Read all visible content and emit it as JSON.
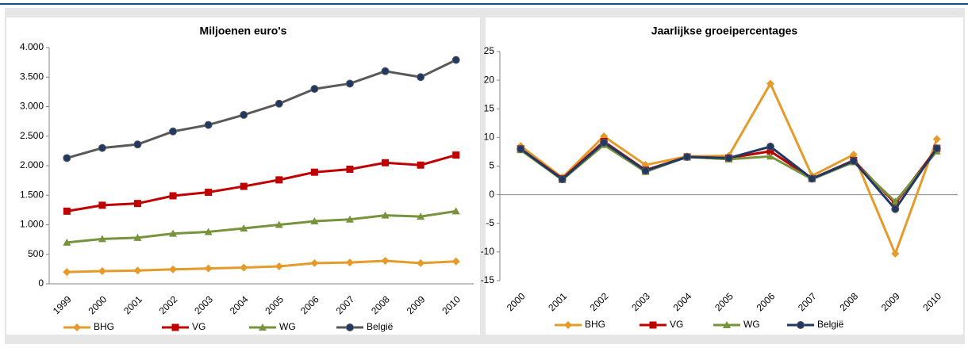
{
  "chart_data": [
    {
      "type": "line",
      "title": "Miljoenen euro's",
      "categories": [
        "1999",
        "2000",
        "2001",
        "2002",
        "2003",
        "2004",
        "2005",
        "2006",
        "2007",
        "2008",
        "2009",
        "2010"
      ],
      "ylim": [
        0,
        4000
      ],
      "yticks": [
        0,
        500,
        {
          "value": 1000,
          "label": "1.000"
        },
        {
          "value": 1500,
          "label": "1.500"
        },
        {
          "value": 2000,
          "label": "2.000"
        },
        {
          "value": 2500,
          "label": "2.500"
        },
        {
          "value": 3000,
          "label": "3.000"
        },
        {
          "value": 3500,
          "label": "3.500"
        },
        {
          "value": 4000,
          "label": "4.000"
        }
      ],
      "legend": "bottom",
      "series": [
        {
          "name": "BHG",
          "color": "#e59b2a",
          "marker": "diamond",
          "marker_color": "#e59b2a",
          "values": [
            200,
            215,
            225,
            245,
            260,
            275,
            295,
            350,
            360,
            390,
            350,
            380
          ]
        },
        {
          "name": "VG",
          "color": "#c00000",
          "marker": "square",
          "marker_color": "#c00000",
          "values": [
            1230,
            1330,
            1360,
            1490,
            1550,
            1650,
            1760,
            1890,
            1940,
            2050,
            2010,
            2180
          ]
        },
        {
          "name": "WG",
          "color": "#77933c",
          "marker": "triangle",
          "marker_color": "#77933c",
          "values": [
            700,
            760,
            780,
            850,
            880,
            940,
            1000,
            1060,
            1090,
            1160,
            1140,
            1230
          ]
        },
        {
          "name": "België",
          "color": "#595959",
          "marker": "circle",
          "marker_color": "#1f3864",
          "values": [
            2130,
            2300,
            2360,
            2580,
            2690,
            2860,
            3050,
            3300,
            3390,
            3600,
            3500,
            3790
          ]
        }
      ]
    },
    {
      "type": "line",
      "title": "Jaarlijkse groeipercentages",
      "categories": [
        "2000",
        "2001",
        "2002",
        "2003",
        "2004",
        "2005",
        "2006",
        "2007",
        "2008",
        "2009",
        "2010"
      ],
      "ylim": [
        -15,
        25
      ],
      "yticks": [
        -15,
        -10,
        -5,
        0,
        5,
        10,
        15,
        20,
        25
      ],
      "legend": "bottom",
      "series": [
        {
          "name": "BHG",
          "color": "#e59b2a",
          "marker": "diamond",
          "marker_color": "#e59b2a",
          "values": [
            8.5,
            3,
            10.2,
            5.2,
            6.7,
            6.8,
            19.4,
            3.3,
            7,
            -10.3,
            9.7
          ]
        },
        {
          "name": "VG",
          "color": "#c00000",
          "marker": "square",
          "marker_color": "#c00000",
          "values": [
            8,
            2.8,
            9.3,
            4.3,
            6.6,
            6.4,
            7.6,
            2.8,
            6,
            -1.5,
            8.1
          ]
        },
        {
          "name": "WG",
          "color": "#77933c",
          "marker": "triangle",
          "marker_color": "#77933c",
          "values": [
            7.8,
            2.6,
            8.7,
            4,
            6.6,
            6.2,
            6.7,
            2.7,
            5.7,
            -1.2,
            7.6
          ]
        },
        {
          "name": "België",
          "color": "#1f3864",
          "marker": "circle",
          "marker_color": "#1f3864",
          "values": [
            8,
            2.7,
            9.1,
            4.2,
            6.6,
            6.4,
            8.4,
            2.8,
            5.9,
            -2.5,
            8.1
          ]
        }
      ]
    }
  ]
}
